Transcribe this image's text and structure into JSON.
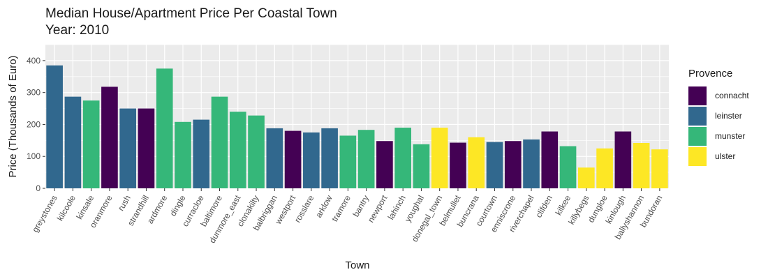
{
  "chart_data": {
    "type": "bar",
    "title": "Median House/Apartment Price Per Coastal Town",
    "subtitle": "Year: 2010",
    "xlabel": "Town",
    "ylabel": "Price (Thousands of Euro)",
    "ylim": [
      0,
      450
    ],
    "yticks": [
      0,
      100,
      200,
      300,
      400
    ],
    "grid": true,
    "legend": {
      "title": "Provence",
      "placement": "right",
      "entries": [
        {
          "label": "connacht",
          "color": "#440154"
        },
        {
          "label": "leinster",
          "color": "#31688E"
        },
        {
          "label": "munster",
          "color": "#35B779"
        },
        {
          "label": "ulster",
          "color": "#FDE725"
        }
      ]
    },
    "categories": [
      "greystones",
      "kilcoole",
      "kinsale",
      "oranmore",
      "rush",
      "strandhill",
      "ardmore",
      "dingle",
      "curracloe",
      "baltimore",
      "dunmore_east",
      "clonakilty",
      "balbriggan",
      "westport",
      "rosslare",
      "arklow",
      "tramore",
      "bantry",
      "newport",
      "lahinch",
      "youghal",
      "donegal_town",
      "belmullet",
      "buncrana",
      "courtown",
      "enniscrone",
      "riverchapel",
      "clifden",
      "kilkee",
      "killybegs",
      "dungloe",
      "kinlough",
      "ballyshannon",
      "bundoran"
    ],
    "values": [
      385,
      287,
      275,
      318,
      250,
      250,
      375,
      208,
      215,
      287,
      240,
      228,
      188,
      180,
      175,
      188,
      165,
      183,
      148,
      190,
      138,
      190,
      143,
      160,
      145,
      148,
      153,
      178,
      132,
      65,
      125,
      178,
      142,
      122
    ],
    "groups": [
      "leinster",
      "leinster",
      "munster",
      "connacht",
      "leinster",
      "connacht",
      "munster",
      "munster",
      "leinster",
      "munster",
      "munster",
      "munster",
      "leinster",
      "connacht",
      "leinster",
      "leinster",
      "munster",
      "munster",
      "connacht",
      "munster",
      "munster",
      "ulster",
      "connacht",
      "ulster",
      "leinster",
      "connacht",
      "leinster",
      "connacht",
      "munster",
      "ulster",
      "ulster",
      "connacht",
      "ulster",
      "ulster"
    ]
  }
}
